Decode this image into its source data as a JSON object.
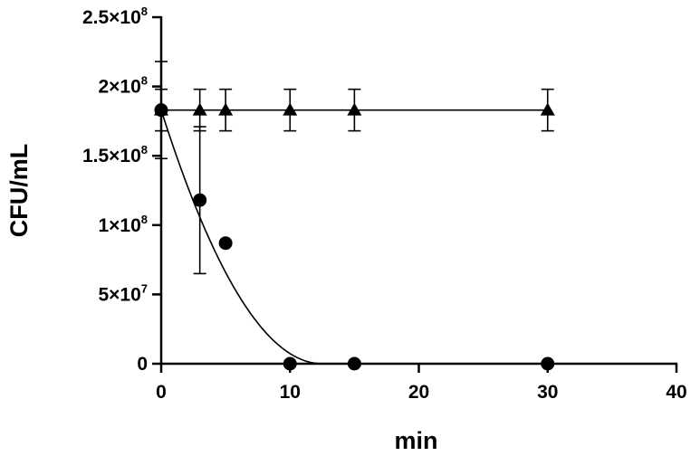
{
  "chart_data": {
    "type": "scatter",
    "xlabel": "min",
    "ylabel": "CFU/mL",
    "xlim": [
      0,
      40
    ],
    "ylim": [
      0,
      250000000
    ],
    "x_ticks": [
      0,
      10,
      20,
      30,
      40
    ],
    "x_tick_labels": [
      "0",
      "10",
      "20",
      "30",
      "40"
    ],
    "y_ticks": [
      0,
      50000000,
      100000000,
      150000000,
      200000000,
      250000000
    ],
    "y_tick_labels": [
      {
        "mantissa": "0",
        "exponent": ""
      },
      {
        "mantissa": "5×10",
        "exponent": "7"
      },
      {
        "mantissa": "1×10",
        "exponent": "8"
      },
      {
        "mantissa": "1.5×10",
        "exponent": "8"
      },
      {
        "mantissa": "2×10",
        "exponent": "8"
      },
      {
        "mantissa": "2.5×10",
        "exponent": "8"
      }
    ],
    "legend": "none",
    "grid": false,
    "series": [
      {
        "marker": "circle",
        "x": [
          0,
          3,
          5,
          10,
          15,
          30
        ],
        "y": [
          183000000,
          118000000,
          87000000,
          0,
          0,
          0
        ],
        "err": [
          35000000,
          53000000,
          0,
          0,
          0,
          0
        ],
        "fit": {
          "model": "quadratic-decay",
          "y0": 183000000,
          "x_zero": 12.5
        }
      },
      {
        "marker": "triangle",
        "x": [
          0,
          3,
          5,
          10,
          15,
          30
        ],
        "y": [
          183000000,
          183000000,
          183000000,
          183000000,
          183000000,
          183000000
        ],
        "err": [
          15000000,
          15000000,
          15000000,
          15000000,
          15000000,
          15000000
        ],
        "fit": {
          "model": "constant",
          "y0": 183000000
        }
      }
    ]
  }
}
